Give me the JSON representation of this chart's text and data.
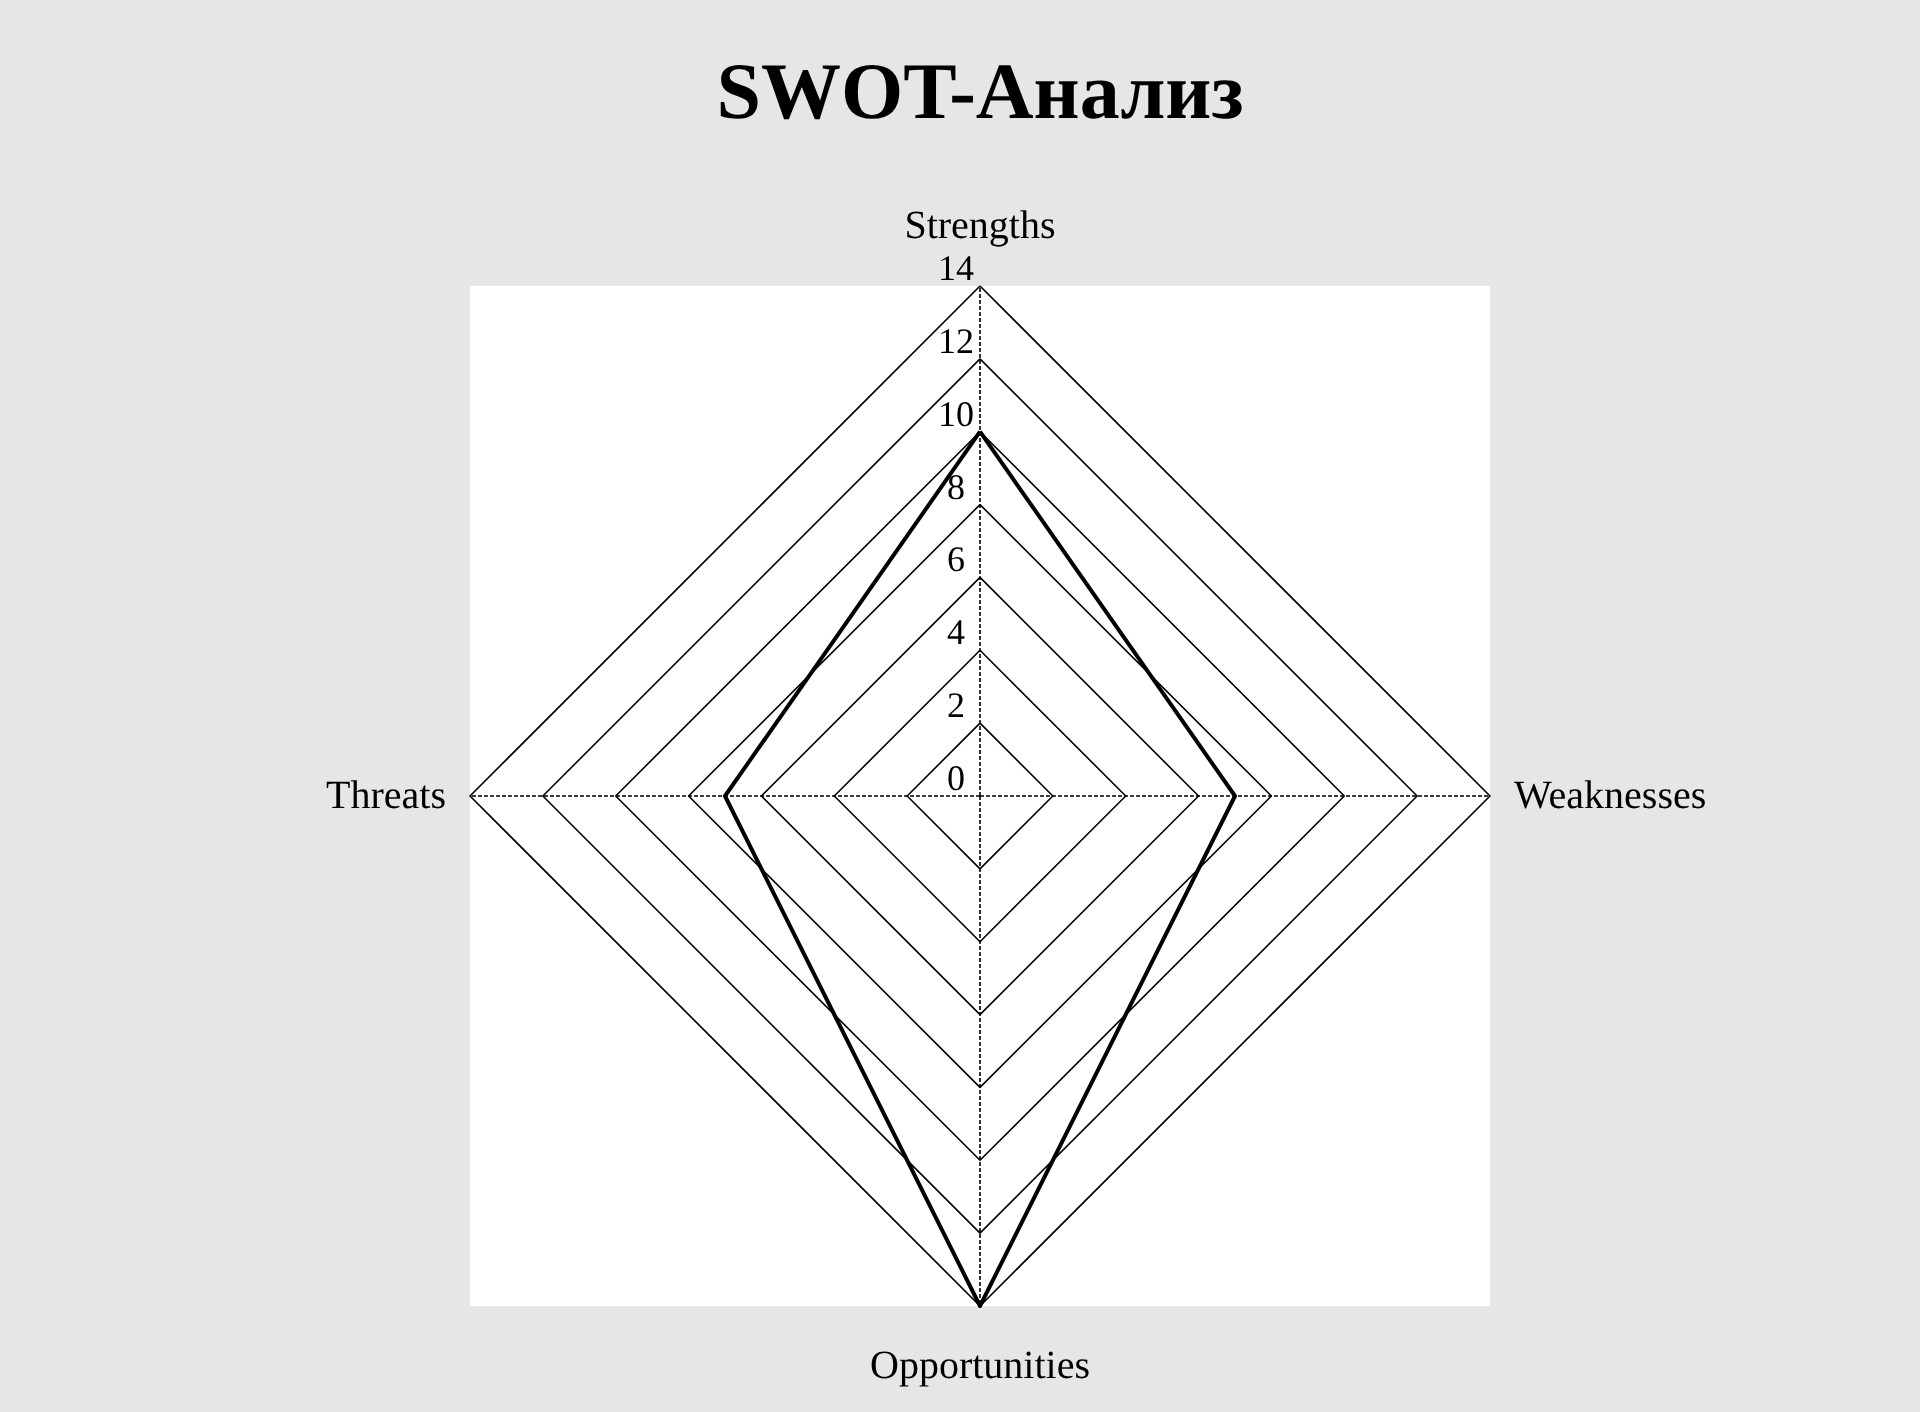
{
  "chart_data": {
    "type": "radar",
    "title": "SWOT-Анализ",
    "categories": [
      "Strengths",
      "Weaknesses",
      "Opportunities",
      "Threats"
    ],
    "series": [
      {
        "color": "#000000",
        "values": [
          10,
          7,
          14,
          7
        ]
      }
    ],
    "ylim": [
      0,
      14
    ],
    "yticks": [
      0,
      2,
      4,
      6,
      8,
      10,
      12,
      14
    ],
    "grid": true,
    "marker": "none"
  }
}
